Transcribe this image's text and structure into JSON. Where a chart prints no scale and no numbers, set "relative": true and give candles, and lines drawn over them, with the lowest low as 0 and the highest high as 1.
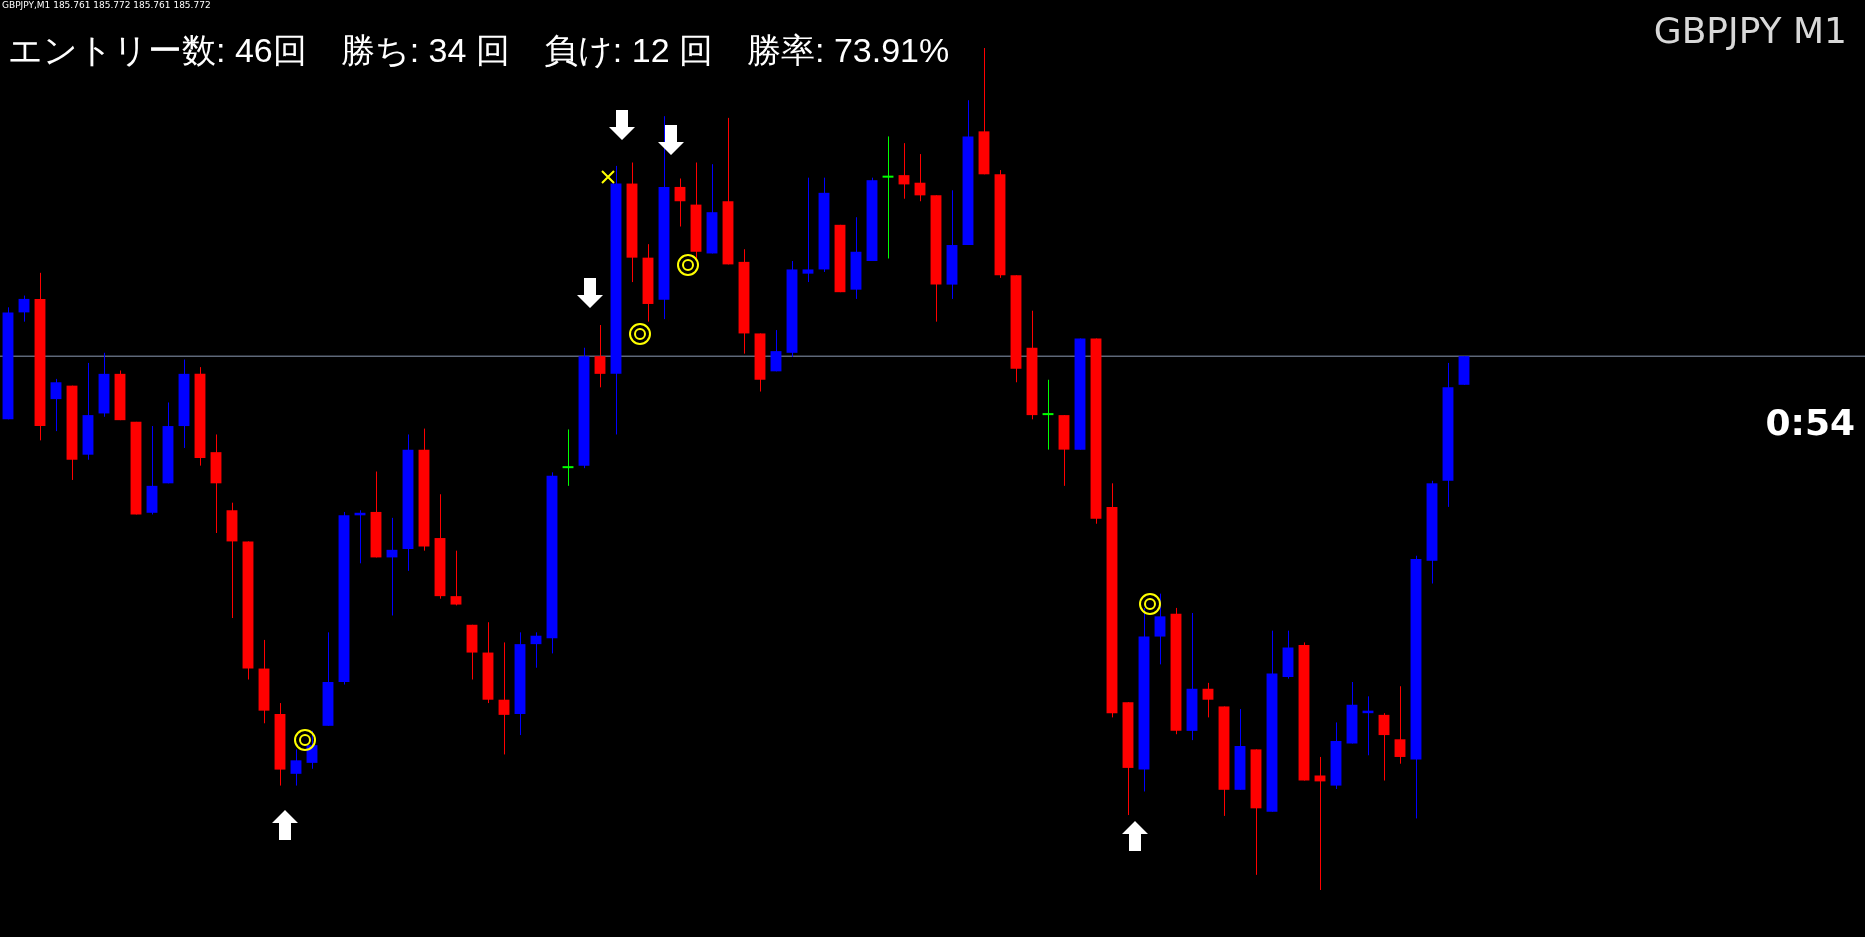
{
  "chart_data": {
    "type": "candlestick",
    "relative": true,
    "tick_labels": false,
    "title": "エントリー数: 46回　勝ち: 34 回　負け: 12 回　勝率: 73.91%",
    "annotations": [
      "GBPJPY M1",
      "0:54",
      "GBPJPY,M1  185.761 185.772 185.761 185.772"
    ],
    "categories": [
      null,
      null,
      null,
      null,
      null,
      null,
      null,
      null,
      null,
      null,
      null,
      null,
      null,
      null,
      null,
      null,
      null,
      null,
      null,
      null,
      null,
      null,
      null,
      null,
      null,
      null,
      null,
      null,
      null,
      null,
      null,
      null,
      null,
      null,
      null,
      null,
      null,
      null,
      null,
      null,
      null,
      null,
      null,
      null,
      null,
      null,
      null,
      null,
      null,
      null,
      null,
      null,
      null,
      null,
      null,
      null,
      null,
      null,
      null,
      null,
      null,
      null,
      null,
      null,
      null,
      null,
      null,
      null,
      null,
      null,
      null,
      null,
      null,
      null,
      null,
      null,
      null,
      null,
      null,
      null,
      null,
      null,
      null,
      null,
      null,
      null,
      null,
      null,
      null,
      null,
      null,
      null
    ],
    "ohlc": [
      [
        0.559,
        0.692,
        0.559,
        0.686
      ],
      [
        0.686,
        0.706,
        0.675,
        0.702
      ],
      [
        0.702,
        0.733,
        0.534,
        0.551
      ],
      [
        0.583,
        0.607,
        0.545,
        0.603
      ],
      [
        0.599,
        0.599,
        0.487,
        0.511
      ],
      [
        0.517,
        0.626,
        0.511,
        0.564
      ],
      [
        0.566,
        0.638,
        0.562,
        0.613
      ],
      [
        0.613,
        0.617,
        0.558,
        0.558
      ],
      [
        0.556,
        0.556,
        0.446,
        0.446
      ],
      [
        0.448,
        0.551,
        0.446,
        0.48
      ],
      [
        0.483,
        0.579,
        0.483,
        0.551
      ],
      [
        0.551,
        0.63,
        0.525,
        0.613
      ],
      [
        0.613,
        0.621,
        0.504,
        0.513
      ],
      [
        0.52,
        0.541,
        0.424,
        0.483
      ],
      [
        0.451,
        0.46,
        0.323,
        0.414
      ],
      [
        0.414,
        0.414,
        0.25,
        0.263
      ],
      [
        0.263,
        0.297,
        0.198,
        0.213
      ],
      [
        0.209,
        0.222,
        0.124,
        0.143
      ],
      [
        0.138,
        0.167,
        0.124,
        0.154
      ],
      [
        0.151,
        0.189,
        0.144,
        0.172
      ],
      [
        0.195,
        0.306,
        0.195,
        0.247
      ],
      [
        0.247,
        0.449,
        0.244,
        0.445
      ],
      [
        0.445,
        0.451,
        0.388,
        0.448
      ],
      [
        0.449,
        0.497,
        0.395,
        0.395
      ],
      [
        0.395,
        0.442,
        0.326,
        0.404
      ],
      [
        0.405,
        0.541,
        0.379,
        0.523
      ],
      [
        0.523,
        0.548,
        0.403,
        0.408
      ],
      [
        0.418,
        0.47,
        0.346,
        0.349
      ],
      [
        0.349,
        0.403,
        0.338,
        0.339
      ],
      [
        0.315,
        0.315,
        0.25,
        0.282
      ],
      [
        0.282,
        0.318,
        0.222,
        0.226
      ],
      [
        0.226,
        0.294,
        0.161,
        0.208
      ],
      [
        0.209,
        0.306,
        0.184,
        0.292
      ],
      [
        0.292,
        0.306,
        0.264,
        0.302
      ],
      [
        0.299,
        0.496,
        0.281,
        0.492
      ],
      [
        0.501,
        0.547,
        0.48,
        0.501
      ],
      [
        0.504,
        0.644,
        0.501,
        0.634
      ],
      [
        0.634,
        0.671,
        0.597,
        0.613
      ],
      [
        0.613,
        0.86,
        0.541,
        0.839
      ],
      [
        0.839,
        0.864,
        0.722,
        0.751
      ],
      [
        0.751,
        0.767,
        0.675,
        0.696
      ],
      [
        0.701,
        0.919,
        0.678,
        0.835
      ],
      [
        0.835,
        0.845,
        0.788,
        0.818
      ],
      [
        0.814,
        0.864,
        0.747,
        0.758
      ],
      [
        0.756,
        0.862,
        0.756,
        0.805
      ],
      [
        0.818,
        0.917,
        0.743,
        0.743
      ],
      [
        0.746,
        0.761,
        0.637,
        0.661
      ],
      [
        0.661,
        0.661,
        0.592,
        0.606
      ],
      [
        0.616,
        0.665,
        0.616,
        0.64
      ],
      [
        0.638,
        0.747,
        0.633,
        0.737
      ],
      [
        0.732,
        0.846,
        0.722,
        0.737
      ],
      [
        0.737,
        0.846,
        0.734,
        0.828
      ],
      [
        0.79,
        0.79,
        0.71,
        0.71
      ],
      [
        0.713,
        0.799,
        0.702,
        0.758
      ],
      [
        0.747,
        0.846,
        0.747,
        0.843
      ],
      [
        0.846,
        0.895,
        0.75,
        0.846
      ],
      [
        0.849,
        0.887,
        0.821,
        0.838
      ],
      [
        0.84,
        0.874,
        0.818,
        0.825
      ],
      [
        0.825,
        0.825,
        0.675,
        0.719
      ],
      [
        0.719,
        0.831,
        0.702,
        0.766
      ],
      [
        0.766,
        0.938,
        0.766,
        0.895
      ],
      [
        0.901,
        1,
        0.85,
        0.85
      ],
      [
        0.85,
        0.855,
        0.727,
        0.73
      ],
      [
        0.73,
        0.73,
        0.603,
        0.619
      ],
      [
        0.644,
        0.688,
        0.559,
        0.564
      ],
      [
        0.564,
        0.606,
        0.523,
        0.564
      ],
      [
        0.564,
        0.564,
        0.48,
        0.523
      ],
      [
        0.523,
        0.655,
        0.523,
        0.655
      ],
      [
        0.655,
        0.655,
        0.435,
        0.441
      ],
      [
        0.455,
        0.483,
        0.205,
        0.21
      ],
      [
        0.223,
        0.223,
        0.089,
        0.145
      ],
      [
        0.143,
        0.335,
        0.117,
        0.301
      ],
      [
        0.301,
        0.352,
        0.268,
        0.325
      ],
      [
        0.328,
        0.335,
        0.185,
        0.189
      ],
      [
        0.189,
        0.329,
        0.178,
        0.239
      ],
      [
        0.239,
        0.246,
        0.205,
        0.226
      ],
      [
        0.218,
        0.218,
        0.088,
        0.119
      ],
      [
        0.119,
        0.215,
        0.119,
        0.171
      ],
      [
        0.167,
        0.167,
        0.018,
        0.097
      ],
      [
        0.093,
        0.308,
        0.093,
        0.257
      ],
      [
        0.253,
        0.308,
        0.251,
        0.288
      ],
      [
        0.291,
        0.294,
        0.13,
        0.13
      ],
      [
        0.136,
        0.158,
        0,
        0.129
      ],
      [
        0.124,
        0.199,
        0.12,
        0.177
      ],
      [
        0.174,
        0.247,
        0.174,
        0.22
      ],
      [
        0.21,
        0.23,
        0.16,
        0.213
      ],
      [
        0.208,
        0.21,
        0.13,
        0.184
      ],
      [
        0.179,
        0.242,
        0.15,
        0.158
      ],
      [
        0.155,
        0.397,
        0.085,
        0.393
      ],
      [
        0.391,
        0.486,
        0.364,
        0.483
      ],
      [
        0.486,
        0.626,
        0.455,
        0.597
      ],
      [
        0.6,
        0.634,
        0.6,
        0.634
      ]
    ],
    "colors": [
      "#0000ff",
      "#0000ff",
      "#ff0000",
      "#0000ff",
      "#ff0000",
      "#0000ff",
      "#0000ff",
      "#ff0000",
      "#ff0000",
      "#0000ff",
      "#0000ff",
      "#0000ff",
      "#ff0000",
      "#ff0000",
      "#ff0000",
      "#ff0000",
      "#ff0000",
      "#ff0000",
      "#0000ff",
      "#0000ff",
      "#0000ff",
      "#0000ff",
      "#0000ff",
      "#ff0000",
      "#0000ff",
      "#0000ff",
      "#ff0000",
      "#ff0000",
      "#ff0000",
      "#ff0000",
      "#ff0000",
      "#ff0000",
      "#0000ff",
      "#0000ff",
      "#0000ff",
      "#00ff00",
      "#0000ff",
      "#ff0000",
      "#0000ff",
      "#ff0000",
      "#ff0000",
      "#0000ff",
      "#ff0000",
      "#ff0000",
      "#0000ff",
      "#ff0000",
      "#ff0000",
      "#ff0000",
      "#0000ff",
      "#0000ff",
      "#0000ff",
      "#0000ff",
      "#ff0000",
      "#0000ff",
      "#0000ff",
      "#00ff00",
      "#ff0000",
      "#ff0000",
      "#ff0000",
      "#0000ff",
      "#0000ff",
      "#ff0000",
      "#ff0000",
      "#ff0000",
      "#ff0000",
      "#00ff00",
      "#ff0000",
      "#0000ff",
      "#ff0000",
      "#ff0000",
      "#ff0000",
      "#0000ff",
      "#0000ff",
      "#ff0000",
      "#0000ff",
      "#ff0000",
      "#ff0000",
      "#0000ff",
      "#ff0000",
      "#0000ff",
      "#0000ff",
      "#ff0000",
      "#ff0000",
      "#0000ff",
      "#0000ff",
      "#0000ff",
      "#ff0000",
      "#ff0000",
      "#0000ff",
      "#0000ff",
      "#0000ff",
      "#0000ff"
    ],
    "ref_lines": [
      {
        "axis": "y",
        "value": 0.634,
        "color": "#8c9bb4"
      }
    ]
  }
}
